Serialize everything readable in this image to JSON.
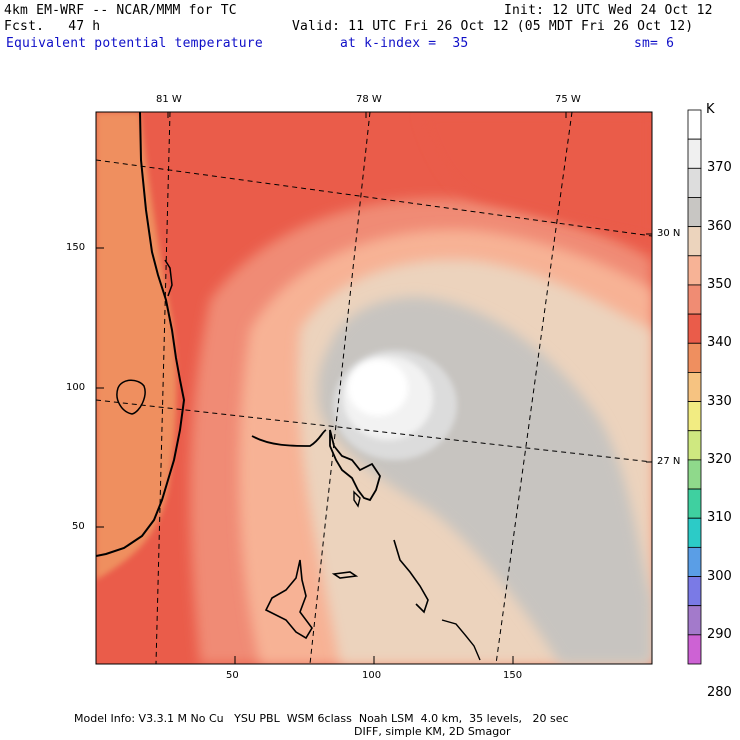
{
  "header": {
    "model_line": "4km EM-WRF -- NCAR/MMM for TC",
    "init_line": "Init: 12 UTC Wed 24 Oct 12",
    "fcst_line": "Fcst.   47 h",
    "valid_line": "Valid: 11 UTC Fri 26 Oct 12 (05 MDT Fri 26 Oct 12)",
    "field_line": "Equivalent potential temperature",
    "kindex_line": "at k-index =  35",
    "sm_line": "sm= 6"
  },
  "map": {
    "lon_labels": [
      "81 W",
      "78 W",
      "75 W"
    ],
    "lat_labels": [
      "30 N",
      "27 N"
    ],
    "x_ticks": [
      "50",
      "100",
      "150"
    ],
    "y_ticks": [
      "150",
      "100",
      "50"
    ],
    "colors": {
      "c330": "#ef8f5f",
      "c340": "#ea5c4a",
      "c345": "#f08b74",
      "c350": "#f7b295",
      "c355": "#ecd3bd",
      "c360": "#c7c4c0",
      "c365": "#dcdcdc",
      "c370": "#f2f2f2",
      "c375": "#ffffff"
    }
  },
  "colorbar": {
    "unit": "K",
    "labels": [
      "370",
      "360",
      "350",
      "340",
      "330",
      "320",
      "310",
      "300",
      "290",
      "280"
    ],
    "colors": [
      "#ffffff",
      "#f0f0f0",
      "#dddddd",
      "#c8c6c3",
      "#ecd4bd",
      "#f7b396",
      "#f08c73",
      "#ea5c4a",
      "#ef8f5f",
      "#f6c381",
      "#f2ec82",
      "#cfe880",
      "#8fd98b",
      "#3fd0a0",
      "#2ccbc7",
      "#5a9ee6",
      "#7a7ae6",
      "#a37acb",
      "#cd62d4"
    ]
  },
  "footer": {
    "line1": "Model Info: V3.3.1 M No Cu   YSU PBL  WSM 6class  Noah LSM  4.0 km,  35 levels,   20 sec",
    "line2": "DIFF, simple KM, 2D Smagor"
  }
}
